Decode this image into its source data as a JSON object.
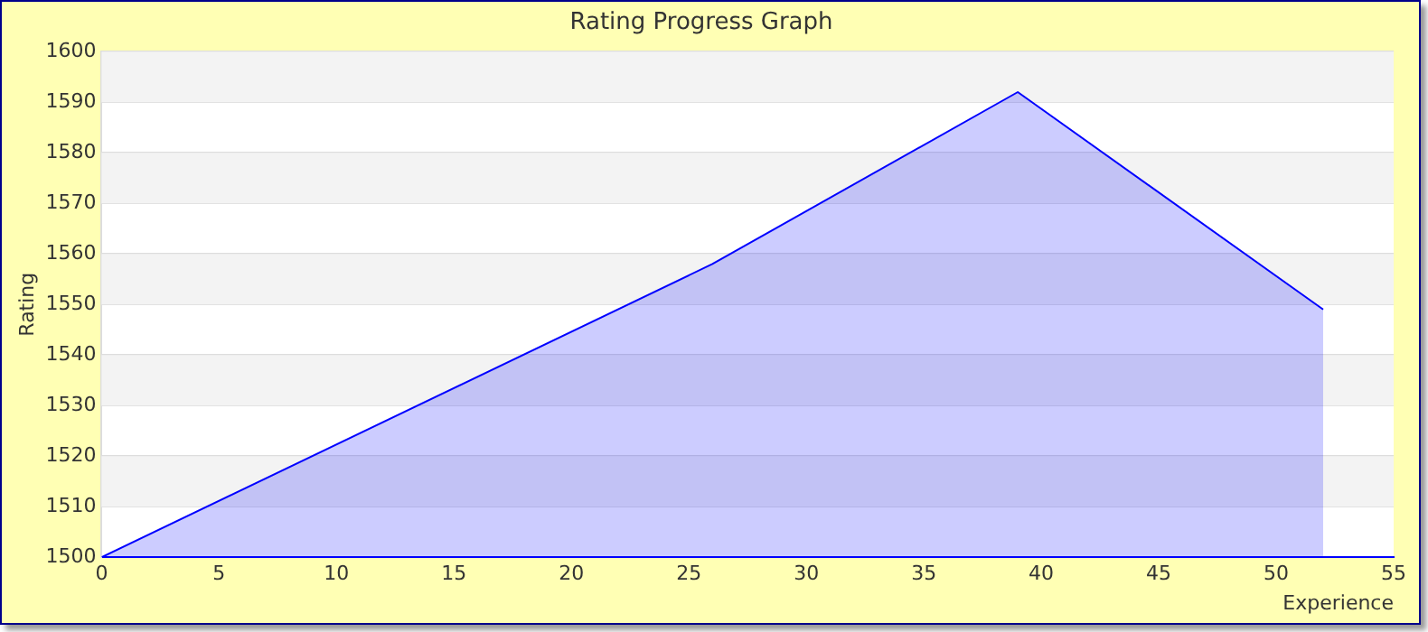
{
  "chart_data": {
    "type": "area",
    "title": "Rating Progress Graph",
    "xlabel": "Experience",
    "ylabel": "Rating",
    "x": [
      0,
      26,
      39,
      52
    ],
    "series": [
      {
        "color": "#0000ff",
        "values": [
          1500,
          1558,
          1592,
          1549
        ]
      }
    ],
    "xlim": [
      0,
      55
    ],
    "xticks": [
      0,
      5,
      10,
      15,
      20,
      25,
      30,
      35,
      40,
      45,
      50,
      55
    ],
    "ylim": [
      1500,
      1600
    ],
    "yticks": [
      1500,
      1510,
      1520,
      1530,
      1540,
      1550,
      1560,
      1570,
      1580,
      1590,
      1600
    ],
    "grid": "y",
    "legend": false
  }
}
